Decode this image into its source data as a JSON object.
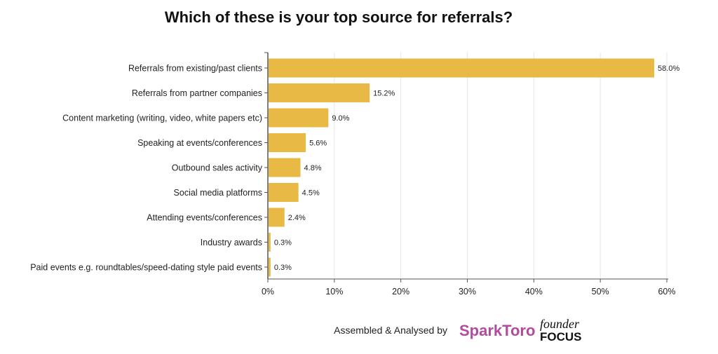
{
  "chart_data": {
    "type": "bar",
    "orientation": "horizontal",
    "title": "Which of these is your top source for referrals?",
    "categories": [
      "Referrals from existing/past clients",
      "Referrals from partner companies",
      "Content marketing (writing, video, white papers etc)",
      "Speaking at events/conferences",
      "Outbound sales activity",
      "Social media platforms",
      "Attending events/conferences",
      "Industry awards",
      "Paid events e.g. roundtables/speed-dating style paid events"
    ],
    "values": [
      58.0,
      15.2,
      9.0,
      5.6,
      4.8,
      4.5,
      2.4,
      0.3,
      0.3
    ],
    "value_labels": [
      "58.0%",
      "15.2%",
      "9.0%",
      "5.6%",
      "4.8%",
      "4.5%",
      "2.4%",
      "0.3%",
      "0.3%"
    ],
    "xlim": [
      0,
      60
    ],
    "xticks": [
      "0%",
      "10%",
      "20%",
      "30%",
      "40%",
      "50%",
      "60%"
    ],
    "grid": "vertical",
    "bar_color": "#E8B945"
  },
  "footer": {
    "credit": "Assembled & Analysed by",
    "logo1": "SparkToro",
    "logo2_top": "founder",
    "logo2_bottom": "FOCUS"
  }
}
